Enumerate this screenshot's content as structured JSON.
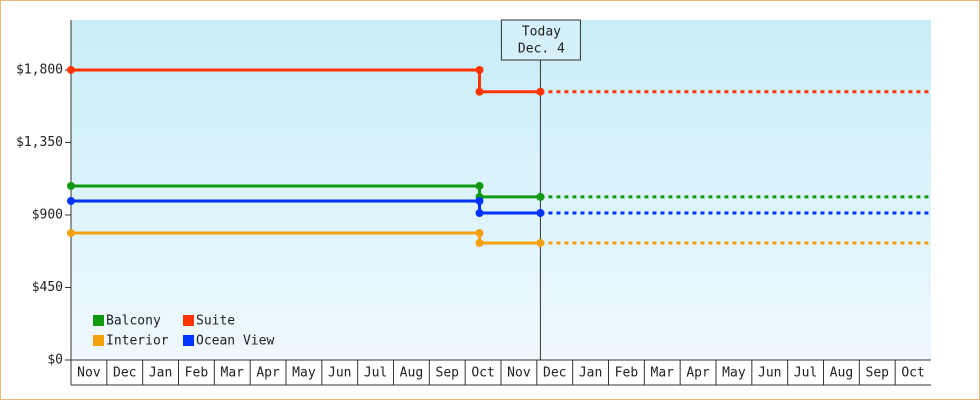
{
  "chart_data": {
    "type": "line",
    "x": [
      0,
      11.4,
      11.4,
      13.1,
      24
    ],
    "xlim": [
      0,
      24
    ],
    "xticks": [
      {
        "value": 0.5,
        "label": "Nov"
      },
      {
        "value": 1.5,
        "label": "Dec"
      },
      {
        "value": 2.5,
        "label": "Jan"
      },
      {
        "value": 3.5,
        "label": "Feb"
      },
      {
        "value": 4.5,
        "label": "Mar"
      },
      {
        "value": 5.5,
        "label": "Apr"
      },
      {
        "value": 6.5,
        "label": "May"
      },
      {
        "value": 7.5,
        "label": "Jun"
      },
      {
        "value": 8.5,
        "label": "Jul"
      },
      {
        "value": 9.5,
        "label": "Aug"
      },
      {
        "value": 10.5,
        "label": "Sep"
      },
      {
        "value": 11.5,
        "label": "Oct"
      },
      {
        "value": 12.5,
        "label": "Nov"
      },
      {
        "value": 13.5,
        "label": "Dec"
      },
      {
        "value": 14.5,
        "label": "Jan"
      },
      {
        "value": 15.5,
        "label": "Feb"
      },
      {
        "value": 16.5,
        "label": "Mar"
      },
      {
        "value": 17.5,
        "label": "Apr"
      },
      {
        "value": 18.5,
        "label": "May"
      },
      {
        "value": 19.5,
        "label": "Jun"
      },
      {
        "value": 20.5,
        "label": "Jul"
      },
      {
        "value": 21.5,
        "label": "Aug"
      },
      {
        "value": 22.5,
        "label": "Sep"
      },
      {
        "value": 23.5,
        "label": "Oct"
      }
    ],
    "ylim": [
      0,
      2110
    ],
    "yticks": [
      {
        "value": 0,
        "label": "$0"
      },
      {
        "value": 450,
        "label": "$450"
      },
      {
        "value": 900,
        "label": "$900"
      },
      {
        "value": 1350,
        "label": "$1,350"
      },
      {
        "value": 1800,
        "label": "$1,800"
      }
    ],
    "series": [
      {
        "name": "Balcony",
        "color": "#119911",
        "values": [
          1080,
          1080,
          1012,
          1012,
          1012
        ]
      },
      {
        "name": "Suite",
        "color": "#ff3300",
        "values": [
          1800,
          1800,
          1665,
          1665,
          1665
        ]
      },
      {
        "name": "Interior",
        "color": "#f5a00c",
        "values": [
          788,
          788,
          726,
          726,
          726
        ]
      },
      {
        "name": "Ocean View",
        "color": "#0033ff",
        "values": [
          987,
          987,
          912,
          912,
          912
        ]
      }
    ],
    "annotation": {
      "x": 13.1,
      "lines": [
        "Today",
        "Dec. 4"
      ]
    },
    "legend": "bottom-left"
  }
}
